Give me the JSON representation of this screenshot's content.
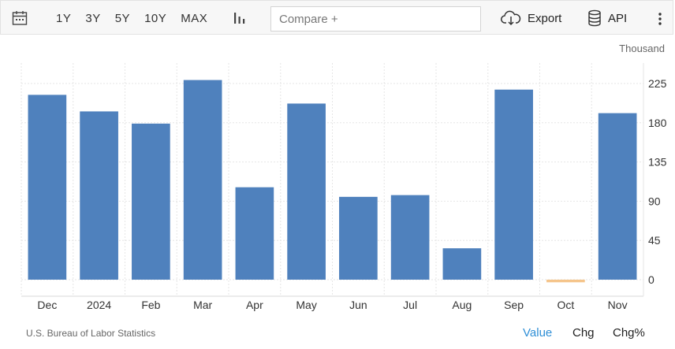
{
  "toolbar": {
    "ranges": [
      "1Y",
      "3Y",
      "5Y",
      "10Y",
      "MAX"
    ],
    "compare_placeholder": "Compare +",
    "export_label": "Export",
    "api_label": "API",
    "icons": [
      "calendar-icon",
      "bar-chart-icon",
      "cloud-download-icon",
      "database-icon",
      "more-vertical-icon"
    ]
  },
  "chart_data": {
    "type": "bar",
    "unit": "Thousand",
    "categories": [
      "Dec",
      "2024",
      "Feb",
      "Mar",
      "Apr",
      "May",
      "Jun",
      "Jul",
      "Aug",
      "Sep",
      "Oct",
      "Nov"
    ],
    "values": [
      212,
      193,
      179,
      229,
      106,
      202,
      95,
      97,
      36,
      218,
      -3,
      191
    ],
    "ylim": [
      -15,
      245
    ],
    "yticks": [
      0,
      45,
      90,
      135,
      180,
      225
    ],
    "bar_color": "#4f81bd",
    "negative_color": "#f5c48a",
    "grid": true
  },
  "footer": {
    "source": "U.S. Bureau of Labor Statistics",
    "modes": [
      "Value",
      "Chg",
      "Chg%"
    ],
    "active_mode": "Value",
    "active_color": "#2f8fd6"
  }
}
